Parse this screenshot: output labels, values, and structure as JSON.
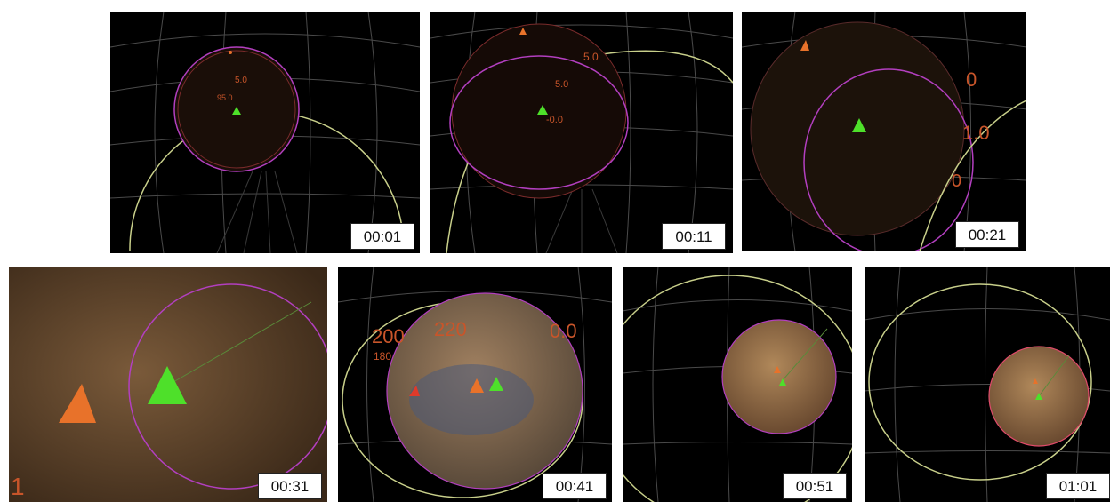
{
  "frames": [
    {
      "timestamp": "00:01",
      "labels": [
        "5.0",
        "95.0"
      ]
    },
    {
      "timestamp": "00:11",
      "labels": [
        "5.0",
        "5.0",
        "-0.0"
      ]
    },
    {
      "timestamp": "00:21",
      "labels": [
        "0",
        "1.0",
        "0"
      ]
    },
    {
      "timestamp": "00:31",
      "labels": [
        "1"
      ]
    },
    {
      "timestamp": "00:41",
      "labels": [
        "200",
        "220",
        "0.0",
        "180"
      ]
    },
    {
      "timestamp": "00:51",
      "labels": []
    },
    {
      "timestamp": "01:01",
      "labels": []
    }
  ],
  "colors": {
    "marker_green": "#4ee02a",
    "marker_orange": "#e8722a",
    "orbit_yellow": "#c8cf8a",
    "ring_magenta": "#b23fbf",
    "grid": "#5a5a5a",
    "planet": "#8a6a48"
  }
}
